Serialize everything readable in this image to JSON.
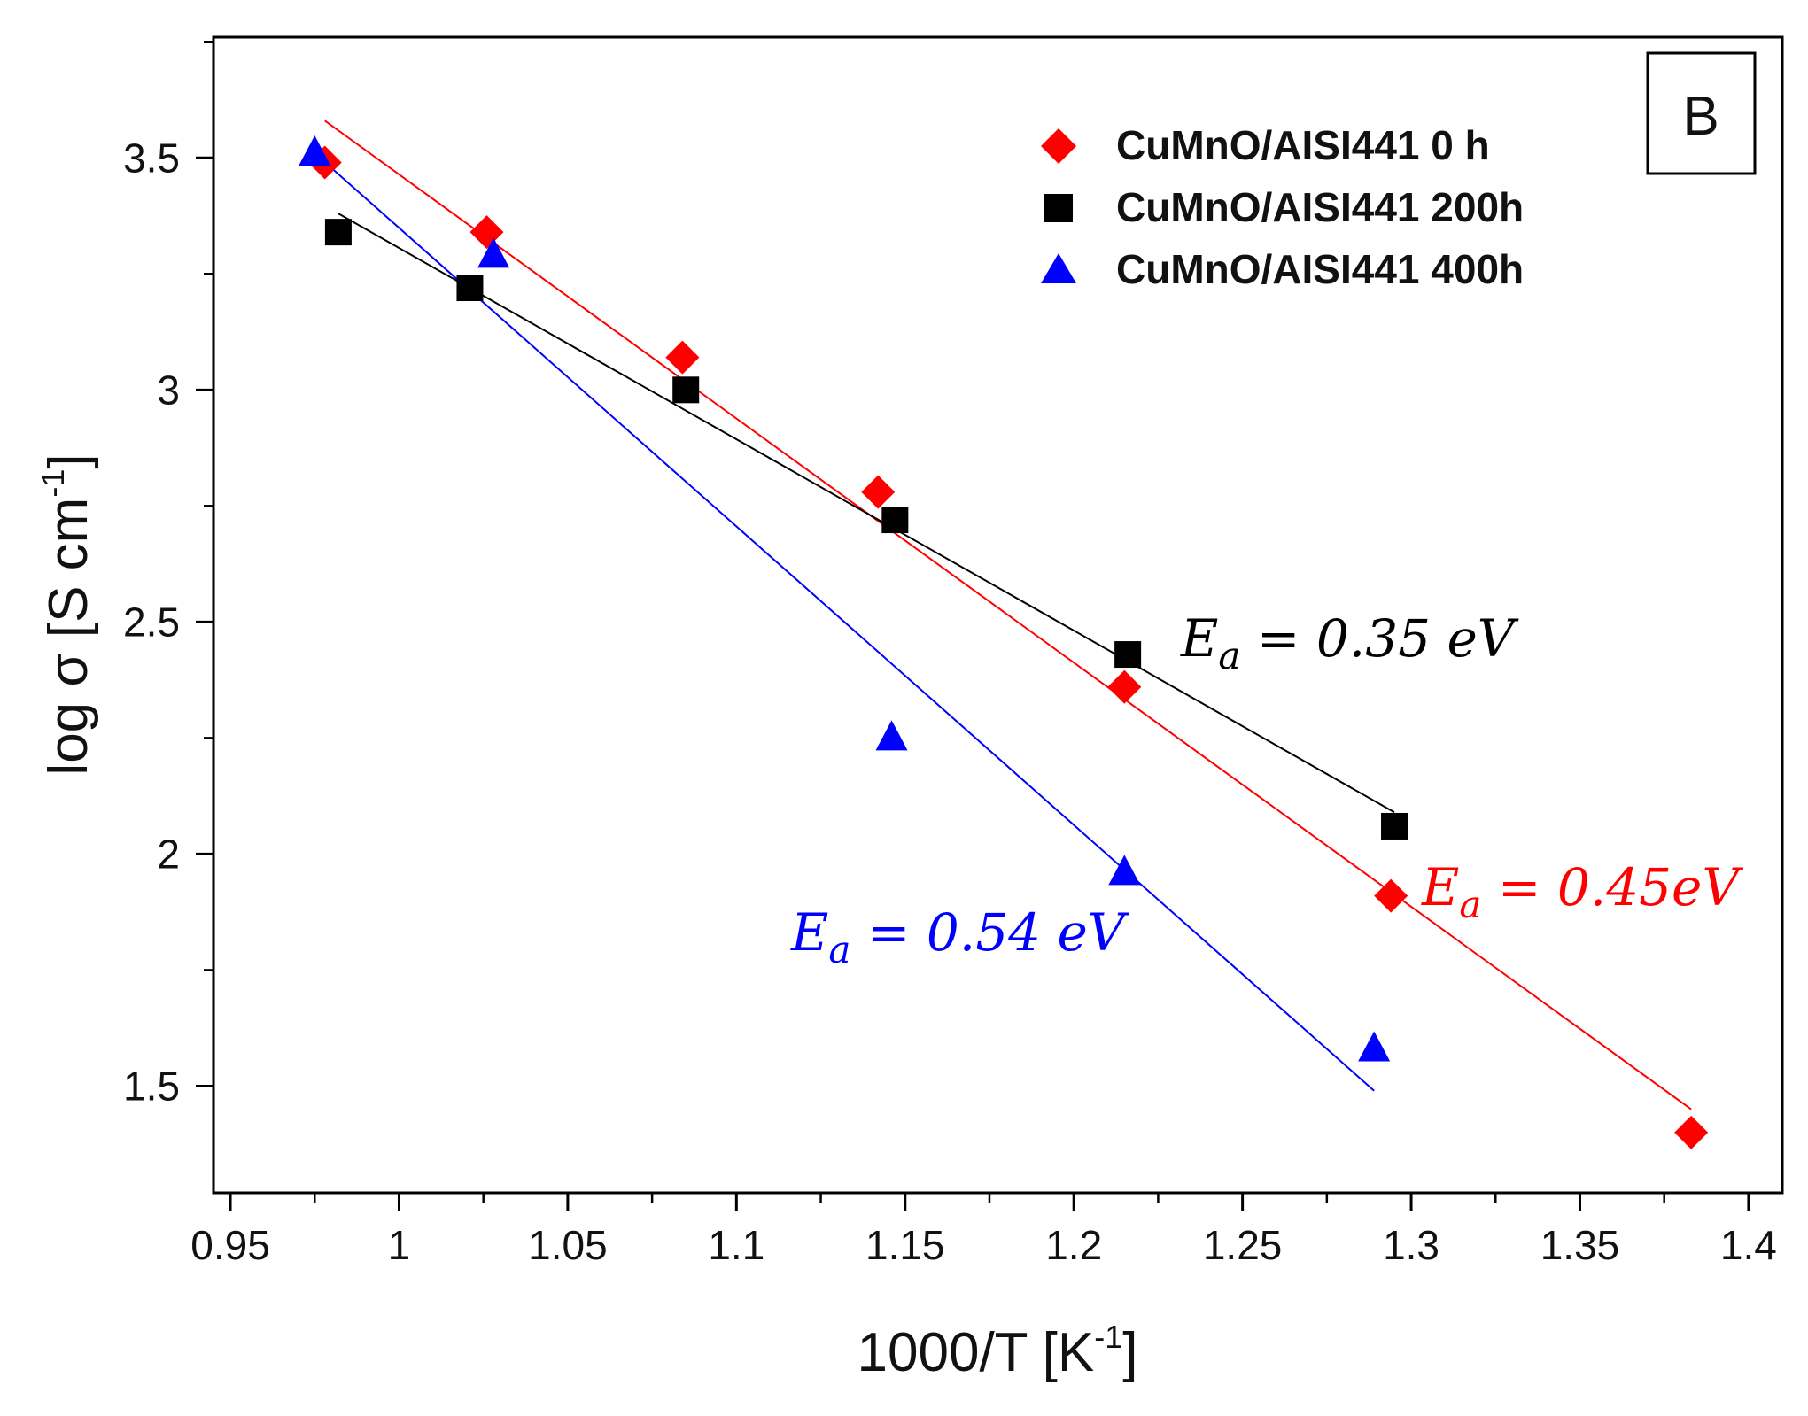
{
  "chart_data": {
    "type": "scatter",
    "panel_label": "B",
    "xlabel": {
      "main": "1000/T [K",
      "sup": "-1",
      "end": "]"
    },
    "ylabel": {
      "main": "log σ [S cm",
      "sup": "-1",
      "end": "]"
    },
    "xlim": [
      0.945,
      1.41
    ],
    "ylim": [
      1.27,
      3.76
    ],
    "xticks": [
      0.95,
      1.0,
      1.05,
      1.1,
      1.15,
      1.2,
      1.25,
      1.3,
      1.35,
      1.4
    ],
    "xtick_labels": [
      "0.95",
      "1",
      "1.05",
      "1.1",
      "1.15",
      "1.2",
      "1.25",
      "1.3",
      "1.35",
      "1.4"
    ],
    "yticks": [
      1.5,
      2.0,
      2.5,
      3.0,
      3.5
    ],
    "ytick_labels": [
      "1.5",
      "2",
      "2.5",
      "3",
      "3.5"
    ],
    "grid": false,
    "legend_position": "top-right",
    "series": [
      {
        "name": "CuMnO/AISI441 0 h",
        "marker": "diamond",
        "color": "#ff0000",
        "x": [
          0.978,
          1.026,
          1.084,
          1.142,
          1.215,
          1.294,
          1.383
        ],
        "y": [
          3.49,
          3.34,
          3.07,
          2.78,
          2.36,
          1.91,
          1.4
        ],
        "fit": {
          "x": [
            0.978,
            1.383
          ],
          "y": [
            3.58,
            1.45
          ]
        },
        "annotation": {
          "lhs": "E",
          "sub": "a",
          "rhs": " = 0.45eV"
        }
      },
      {
        "name": "CuMnO/AISI441 200h",
        "marker": "square",
        "color": "#000000",
        "x": [
          0.982,
          1.021,
          1.085,
          1.147,
          1.216,
          1.295
        ],
        "y": [
          3.34,
          3.22,
          3.0,
          2.72,
          2.43,
          2.06
        ],
        "fit": {
          "x": [
            0.982,
            1.295
          ],
          "y": [
            3.38,
            2.09
          ]
        },
        "annotation": {
          "lhs": "E",
          "sub": "a",
          "rhs": " = 0.35 eV"
        }
      },
      {
        "name": "CuMnO/AISI441 400h",
        "marker": "triangle",
        "color": "#0000ff",
        "x": [
          0.975,
          1.028,
          1.146,
          1.215,
          1.289
        ],
        "y": [
          3.51,
          3.29,
          2.25,
          1.96,
          1.58
        ],
        "fit": {
          "x": [
            0.975,
            1.289
          ],
          "y": [
            3.51,
            1.49
          ]
        },
        "annotation": {
          "lhs": "E",
          "sub": "a",
          "rhs": " = 0.54 eV"
        }
      }
    ]
  }
}
